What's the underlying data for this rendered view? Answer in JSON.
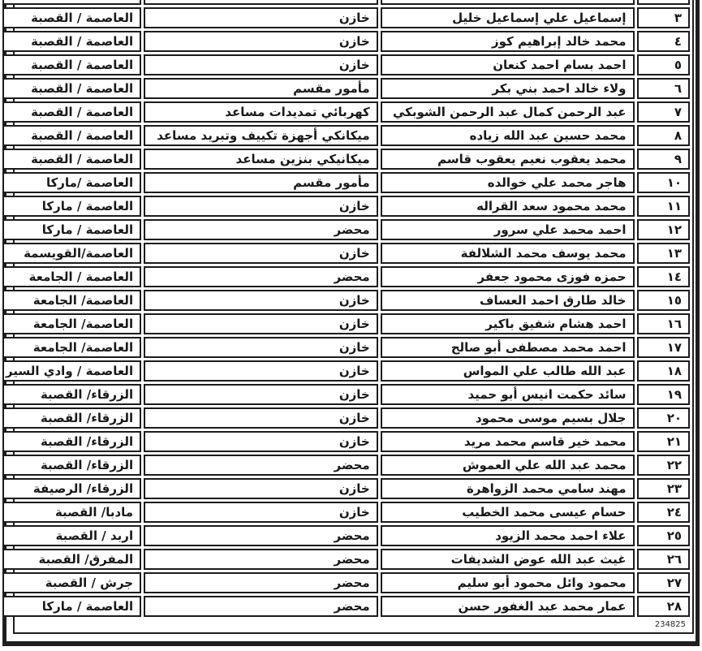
{
  "document": {
    "serial_number": "234825"
  },
  "colors": {
    "cell_border": "#1c1c1c",
    "row_number_bg": "#d9d9d9",
    "text": "#191919",
    "frame": "#1e1e1e"
  },
  "table": {
    "rows": [
      {
        "number": "٣",
        "name": "إسماعيل علي إسماعيل خليل",
        "job": "خازن",
        "location": "العاصمة / القصبة"
      },
      {
        "number": "٤",
        "name": "محمد خالد إبراهيم كوز",
        "job": "خازن",
        "location": "العاصمة / القصبة"
      },
      {
        "number": "٥",
        "name": "احمد بسام احمد كنعان",
        "job": "خازن",
        "location": "العاصمة / القصبة"
      },
      {
        "number": "٦",
        "name": "ولاء خالد احمد بني بكر",
        "job": "مأمور مقسم",
        "location": "العاصمة / القصبة"
      },
      {
        "number": "٧",
        "name": "عبد الرحمن كمال عبد الرحمن الشوبكي",
        "job": "كهربائي تمديدات مساعد",
        "location": "العاصمة / القصبة"
      },
      {
        "number": "٨",
        "name": "محمد حسين عبد الله زياده",
        "job": "ميكانكي أجهزة تكييف وتبريد مساعد",
        "location": "العاصمة / القصبة"
      },
      {
        "number": "٩",
        "name": "محمد يعقوب نعيم يعقوب قاسم",
        "job": "ميكانيكي بنزين مساعد",
        "location": "العاصمة / القصبة"
      },
      {
        "number": "١٠",
        "name": "هاجر محمد علي خوالده",
        "job": "مأمور مقسم",
        "location": "العاصمة /ماركا"
      },
      {
        "number": "١١",
        "name": "محمد محمود سعد القراله",
        "job": "خازن",
        "location": "العاصمة / ماركا"
      },
      {
        "number": "١٢",
        "name": "احمد محمد علي سرور",
        "job": "محضر",
        "location": "العاصمة / ماركا"
      },
      {
        "number": "١٣",
        "name": "محمد يوسف محمد الشلالفة",
        "job": "خازن",
        "location": "العاصمة/القويسمة"
      },
      {
        "number": "١٤",
        "name": "حمزه فوزى محمود جعفر",
        "job": "محضر",
        "location": "العاصمة / الجامعة"
      },
      {
        "number": "١٥",
        "name": "خالد طارق احمد العساف",
        "job": "خازن",
        "location": "العاصمة/ الجامعة"
      },
      {
        "number": "١٦",
        "name": "احمد هشام شفيق باكير",
        "job": "خازن",
        "location": "العاصمة/ الجامعة"
      },
      {
        "number": "١٧",
        "name": "احمد محمد مصطفى أبو صالح",
        "job": "خازن",
        "location": "العاصمة/ الجامعة"
      },
      {
        "number": "١٨",
        "name": "عبد الله طالب علي المواس",
        "job": "خازن",
        "location": "العاصمة / وادي السير"
      },
      {
        "number": "١٩",
        "name": "سائد حكمت انيس أبو حميد",
        "job": "خازن",
        "location": "الزرقاء/ القصبة"
      },
      {
        "number": "٢٠",
        "name": "جلال بسيم موسى محمود",
        "job": "خازن",
        "location": "الزرقاء/ القصبة"
      },
      {
        "number": "٢١",
        "name": "محمد خير قاسم محمد مريد",
        "job": "خازن",
        "location": "الزرقاء/ القصبة"
      },
      {
        "number": "٢٢",
        "name": "محمد عبد الله علي العموش",
        "job": "محضر",
        "location": "الزرقاء/ القصبة"
      },
      {
        "number": "٢٣",
        "name": "مهند سامي محمد الزواهرة",
        "job": "خازن",
        "location": "الزرقاء/ الرصيفة"
      },
      {
        "number": "٢٤",
        "name": "حسام عيسى محمد الخطيب",
        "job": "خازن",
        "location": "مادبا/ القصبة"
      },
      {
        "number": "٢٥",
        "name": "علاء احمد محمد الزيود",
        "job": "محضر",
        "location": "اربد / القصبة"
      },
      {
        "number": "٢٦",
        "name": "غيث عبد الله عوض الشديفات",
        "job": "محضر",
        "location": "المفرق/ القصبة"
      },
      {
        "number": "٢٧",
        "name": "محمود وائل محمود أبو سليم",
        "job": "محضر",
        "location": "جرش / القصبة"
      },
      {
        "number": "٢٨",
        "name": "عمار محمد عبد الغفور حسن",
        "job": "محضر",
        "location": "العاصمة / ماركا"
      }
    ]
  }
}
